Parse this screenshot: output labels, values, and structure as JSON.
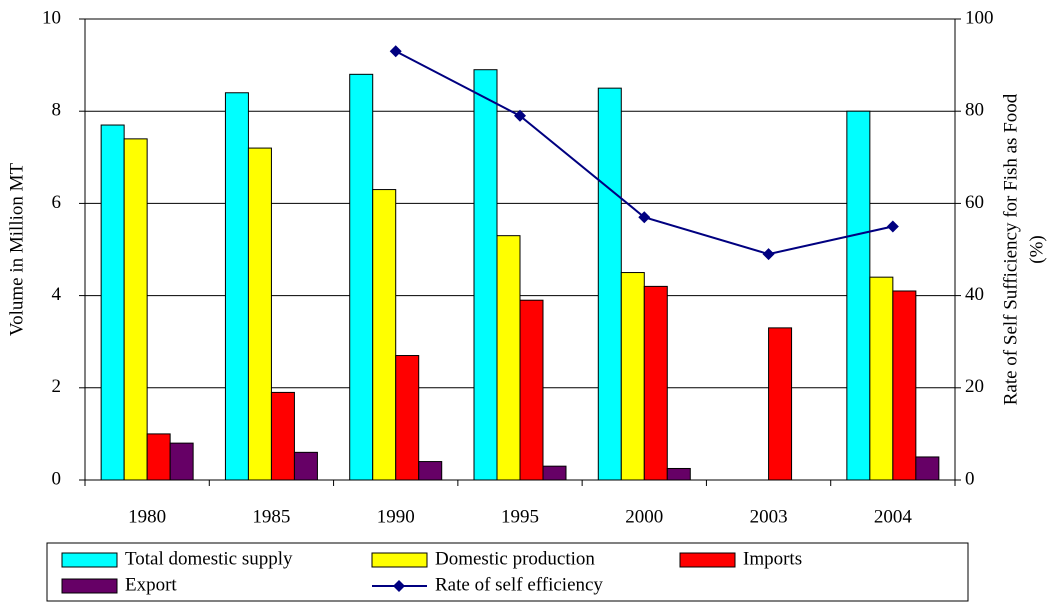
{
  "chart_data": {
    "type": "bar",
    "categories": [
      "1980",
      "1985",
      "1990",
      "1995",
      "2000",
      "2003",
      "2004"
    ],
    "series": [
      {
        "name": "Total domestic supply",
        "color": "#00ffff",
        "values": [
          7.7,
          8.4,
          8.8,
          8.9,
          8.5,
          null,
          8.0
        ]
      },
      {
        "name": "Domestic production",
        "color": "#ffff00",
        "values": [
          7.4,
          7.2,
          6.3,
          5.3,
          4.5,
          null,
          4.4
        ]
      },
      {
        "name": "Imports",
        "color": "#ff0000",
        "values": [
          1.0,
          1.9,
          2.7,
          3.9,
          4.2,
          3.3,
          4.1
        ]
      },
      {
        "name": "Export",
        "color": "#660066",
        "values": [
          0.8,
          0.6,
          0.4,
          0.3,
          0.25,
          null,
          0.5
        ]
      },
      {
        "name": "Rate of self efficiency",
        "type": "line",
        "axis": "y2",
        "color": "#000080",
        "values": [
          null,
          null,
          93,
          79,
          57,
          49,
          55
        ]
      }
    ],
    "ylabel": "Volume in Million MT",
    "y2label": [
      "Rate of Self Sufficiency for Fish as Food",
      "(%)"
    ],
    "ylim": [
      0,
      10
    ],
    "yticks": [
      0,
      2,
      4,
      6,
      8,
      10
    ],
    "y2lim": [
      0,
      100
    ],
    "y2ticks": [
      0,
      20,
      40,
      60,
      80,
      100
    ],
    "grid": true
  }
}
